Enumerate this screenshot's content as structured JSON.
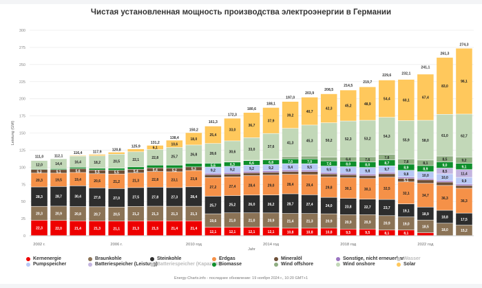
{
  "chart_data": {
    "type": "bar",
    "stacked": true,
    "title": "Чистая установленная мощность производства электроэнергии в Германии",
    "xlabel": "Jahr",
    "ylabel": "Leistung (GW)",
    "ylim": [
      0,
      300
    ],
    "yticks": [
      0,
      25,
      50,
      75,
      100,
      125,
      150,
      175,
      200,
      225,
      250,
      275,
      300
    ],
    "grid": true,
    "legend_position": "bottom",
    "categories": [
      "2002",
      "2003",
      "2004",
      "2005",
      "2006",
      "2007",
      "2008",
      "2009",
      "2010",
      "2011",
      "2012",
      "2013",
      "2014",
      "2015",
      "2016",
      "2017",
      "2018",
      "2019",
      "2020",
      "2021",
      "2022",
      "2023",
      "2024"
    ],
    "xtick_labels": [
      {
        "index": 0,
        "label": "2002 г."
      },
      {
        "index": 4,
        "label": "2006 г."
      },
      {
        "index": 8,
        "label": "2010 год"
      },
      {
        "index": 12,
        "label": "2014 год"
      },
      {
        "index": 16,
        "label": "2018 год"
      },
      {
        "index": 20,
        "label": "2022 год"
      }
    ],
    "totals": [
      111.0,
      112.1,
      116.4,
      117.9,
      120.8,
      125.9,
      131.2,
      138.4,
      150.2,
      161.3,
      172.3,
      180.6,
      188.1,
      197.0,
      203.9,
      208.5,
      214.5,
      219.7,
      229.6,
      232.1,
      241.1,
      261.3,
      274.3
    ],
    "series": [
      {
        "name": "Kernenergie",
        "color": "#ee0000",
        "values": [
          22.3,
          22.0,
          21.4,
          21.3,
          21.1,
          21.3,
          21.5,
          21.4,
          21.4,
          12.1,
          12.1,
          12.1,
          12.1,
          10.8,
          10.8,
          10.8,
          9.5,
          9.5,
          8.1,
          8.1,
          4.1,
          0,
          0
        ],
        "labels": [
          "22,3",
          "22,0",
          "21,4",
          "21,3",
          "21,1",
          "21,3",
          "21,5",
          "21,4",
          "21,4",
          "12,1",
          "12,1",
          "12,1",
          "12,1",
          "10,8",
          "10,8",
          "10,8",
          "9,5",
          "9,5",
          "8,1",
          "8,1",
          "4,1",
          "",
          ""
        ]
      },
      {
        "name": "Braunkohle",
        "color": "#8b7356",
        "values": [
          20.3,
          20.9,
          20.8,
          20.7,
          20.5,
          21.2,
          21.3,
          21.3,
          21.3,
          19.6,
          21.0,
          21.0,
          20.9,
          21.4,
          21.3,
          20.9,
          20.9,
          20.9,
          20.9,
          19.0,
          18.5,
          18.0,
          15.2
        ],
        "labels": [
          "20,3",
          "20,9",
          "20,8",
          "20,7",
          "20,5",
          "21,2",
          "21,3",
          "21,3",
          "21,3",
          "19,6",
          "21,0",
          "21,0",
          "20,9",
          "21,4",
          "21,3",
          "20,9",
          "20,9",
          "20,9",
          "20,9",
          "19,0",
          "18,5",
          "18,0",
          "15,2"
        ]
      },
      {
        "name": "Steinkohle",
        "color": "#2d2d2d",
        "values": [
          28.3,
          28.7,
          30.4,
          27.6,
          27.0,
          27.5,
          27.8,
          27.3,
          28.4,
          25.7,
          25.2,
          26.0,
          26.2,
          28.7,
          27.4,
          24.0,
          23.8,
          22.7,
          23.7,
          19.1,
          18.9,
          18.8,
          17.5
        ],
        "labels": [
          "28,3",
          "28,7",
          "30,4",
          "27,6",
          "27,0",
          "27,5",
          "27,8",
          "27,3",
          "28,4",
          "25,7",
          "25,2",
          "26,0",
          "26,2",
          "28,7",
          "27,4",
          "24,0",
          "23,8",
          "22,7",
          "23,7",
          "19,1",
          "18,9",
          "18,8",
          "17,5"
        ]
      },
      {
        "name": "Erdgas",
        "color": "#f59148",
        "values": [
          20.3,
          19.5,
          19.4,
          20.6,
          21.2,
          21.3,
          22.8,
          23.1,
          23.8,
          27.2,
          27.4,
          28.4,
          29.0,
          28.4,
          29.4,
          29.8,
          30.1,
          30.1,
          32.5,
          32.1,
          34.7,
          36.3,
          36.3
        ],
        "labels": [
          "20,3",
          "19,5",
          "19,4",
          "20,6",
          "21,2",
          "21,3",
          "22,8",
          "23,1",
          "23,8",
          "27,2",
          "27,4",
          "28,4",
          "29,0",
          "28,4",
          "29,4",
          "29,8",
          "30,1",
          "30,1",
          "32,5",
          "32,1",
          "34,7",
          "36,3",
          "36,3"
        ]
      },
      {
        "name": "Mineralöl",
        "color": "#6e5038",
        "values": [
          5.3,
          5.1,
          5.6,
          5.5,
          5.5,
          5.4,
          5.4,
          5.2,
          5.3,
          4.2,
          4.1,
          4.1,
          4.2,
          4.2,
          4.4,
          4.4,
          4.4,
          4.4,
          4.9,
          5.1,
          5.0,
          4.9,
          4.0
        ],
        "labels": [
          "5,3",
          "5,1",
          "5,6",
          "5,5",
          "5,5",
          "5,4",
          "5,4",
          "5,2",
          "5,3",
          "4,2",
          "4,1",
          "4,1",
          "4,2",
          "4,2",
          "4,4",
          "4,4",
          "4,4",
          "4,4",
          "4,9",
          "5,1",
          "5,0",
          "4,9",
          "4,0"
        ]
      },
      {
        "name": "Sonstige, nicht erneuerbar",
        "color": "#9b75c2",
        "values": [
          0,
          0,
          0,
          0,
          0,
          0,
          0,
          0,
          0,
          2.0,
          2.0,
          2.0,
          2.0,
          2.0,
          2.0,
          2.0,
          2.0,
          2.0,
          2.0,
          2.0,
          2.0,
          2.0,
          2.0
        ],
        "labels": [
          "",
          "",
          "",
          "",
          "",
          "",
          "",
          "",
          "",
          "",
          "",
          "",
          "",
          "",
          "",
          "",
          "",
          "",
          "",
          "",
          "",
          "",
          ""
        ]
      },
      {
        "name": "Pumpspeicher",
        "color": "#b8c8f5",
        "values": [
          0,
          0,
          0,
          0,
          0,
          0,
          0,
          0,
          0,
          9.2,
          9.2,
          9.2,
          9.2,
          9.4,
          9.5,
          9.5,
          9.8,
          9.8,
          9.7,
          9.8,
          10.0,
          10.0,
          9.9
        ],
        "labels": [
          "",
          "",
          "",
          "",
          "",
          "",
          "",
          "",
          "",
          "9,2",
          "9,2",
          "9,2",
          "9,2",
          "9,4",
          "9,5",
          "9,5",
          "9,8",
          "9,8",
          "9,7",
          "9,8",
          "10,0",
          "10,0",
          "9,9"
        ]
      },
      {
        "name": "Batteriespeicher (Leistung)",
        "color": "#c4b5e0",
        "values": [
          0,
          0,
          0,
          0,
          0,
          0,
          0,
          0,
          0,
          0,
          0,
          0,
          0,
          0,
          0,
          0,
          0,
          0,
          0,
          0,
          0,
          8.5,
          11.4
        ],
        "labels": [
          "",
          "",
          "",
          "",
          "",
          "",
          "",
          "",
          "",
          "",
          "",
          "",
          "",
          "",
          "",
          "",
          "",
          "",
          "",
          "",
          "",
          "8,5",
          "11,4"
        ]
      },
      {
        "name": "Biomasse",
        "color": "#0f8f2c",
        "values": [
          1.0,
          1.5,
          2.0,
          2.5,
          3.0,
          3.5,
          4.0,
          4.5,
          5.1,
          5.6,
          6.3,
          6.6,
          6.8,
          7.0,
          7.0,
          7.6,
          8.0,
          8.0,
          8.7,
          8.9,
          8.9,
          9.0,
          9.1
        ],
        "labels": [
          "",
          "",
          "",
          "",
          "",
          "",
          "",
          "",
          "",
          "5,6",
          "6,3",
          "6,6",
          "6,8",
          "7,0",
          "7,0",
          "7,6",
          "8,0",
          "8,0",
          "8,7",
          "8,9",
          "8,9",
          "9,0",
          "9,1"
        ]
      },
      {
        "name": "Wind offshore",
        "color": "#8fae82",
        "values": [
          0,
          0,
          0,
          0,
          0,
          0,
          0,
          0.1,
          0.1,
          0.2,
          0.3,
          0.5,
          1.0,
          3.3,
          4.2,
          5.4,
          6.4,
          7.6,
          7.8,
          7.8,
          8.1,
          8.5,
          9.2
        ],
        "labels": [
          "",
          "",
          "",
          "",
          "",
          "",
          "",
          "",
          "0,1",
          "",
          "",
          "",
          "",
          "",
          "",
          "",
          "6,4",
          "7,6",
          "7,8",
          "7,8",
          "8,1",
          "8,5",
          "9,2"
        ]
      },
      {
        "name": "Wind onshore",
        "color": "#c2d8b8",
        "values": [
          12.0,
          14.4,
          16.4,
          18.2,
          20.5,
          22.1,
          22.8,
          25.7,
          26.8,
          28.6,
          30.6,
          33.0,
          37.6,
          41.3,
          45.3,
          50.2,
          52.3,
          53.2,
          54.3,
          55.9,
          58.0,
          61.0,
          62.7
        ],
        "labels": [
          "12,0",
          "14,4",
          "16,4",
          "18,2",
          "20,5",
          "22,1",
          "22,8",
          "25,7",
          "26,8",
          "28,6",
          "30,6",
          "33,0",
          "37,6",
          "41,3",
          "45,3",
          "50,2",
          "52,3",
          "53,2",
          "54,3",
          "55,9",
          "58,0",
          "61,0",
          "62,7"
        ]
      },
      {
        "name": "Solar",
        "color": "#ffc85c",
        "values": [
          0.3,
          0.4,
          1.1,
          2.1,
          2.9,
          4.2,
          6.1,
          10.6,
          18.0,
          25.4,
          33.0,
          36.7,
          37.9,
          39.2,
          40.7,
          42.3,
          45.2,
          48.9,
          54.4,
          60.1,
          67.4,
          83.0,
          96.1
        ],
        "labels": [
          "",
          "",
          "1,1",
          "2,1",
          "2,9",
          "4,2",
          "6,1",
          "10,6",
          "18,0",
          "25,4",
          "33,0",
          "36,7",
          "37,9",
          "39,2",
          "40,7",
          "42,3",
          "45,2",
          "48,9",
          "54,4",
          "60,1",
          "67,4",
          "83,0",
          "96,1"
        ]
      }
    ],
    "legend": [
      {
        "name": "Kernenergie",
        "color": "#ee0000",
        "disabled": false
      },
      {
        "name": "Braunkohle",
        "color": "#8b7356",
        "disabled": false
      },
      {
        "name": "Steinkohle",
        "color": "#2d2d2d",
        "disabled": false
      },
      {
        "name": "Erdgas",
        "color": "#f59148",
        "disabled": false
      },
      {
        "name": "Mineralöl",
        "color": "#6e5038",
        "disabled": false
      },
      {
        "name": "Sonstige, nicht erneuerbar",
        "color": "#9b75c2",
        "disabled": false
      },
      {
        "name": "Wasser",
        "color": "#cccccc",
        "disabled": true
      },
      {
        "name": "Pumpspeicher",
        "color": "#b8c8f5",
        "disabled": false
      },
      {
        "name": "Batteriespeicher (Leistung)",
        "color": "#c4b5e0",
        "disabled": false
      },
      {
        "name": "Batteriespeicher (Kapazität)",
        "color": "#cccccc",
        "disabled": true
      },
      {
        "name": "Biomasse",
        "color": "#0f8f2c",
        "disabled": false
      },
      {
        "name": "Wind offshore",
        "color": "#8fae82",
        "disabled": false
      },
      {
        "name": "Wind onshore",
        "color": "#c2d8b8",
        "disabled": false
      },
      {
        "name": "Solar",
        "color": "#ffc85c",
        "disabled": false
      }
    ]
  },
  "credit": "Energy-Charts.info - последнее обновление: 19 ноября 2024 г., 10:20 GMT+1"
}
